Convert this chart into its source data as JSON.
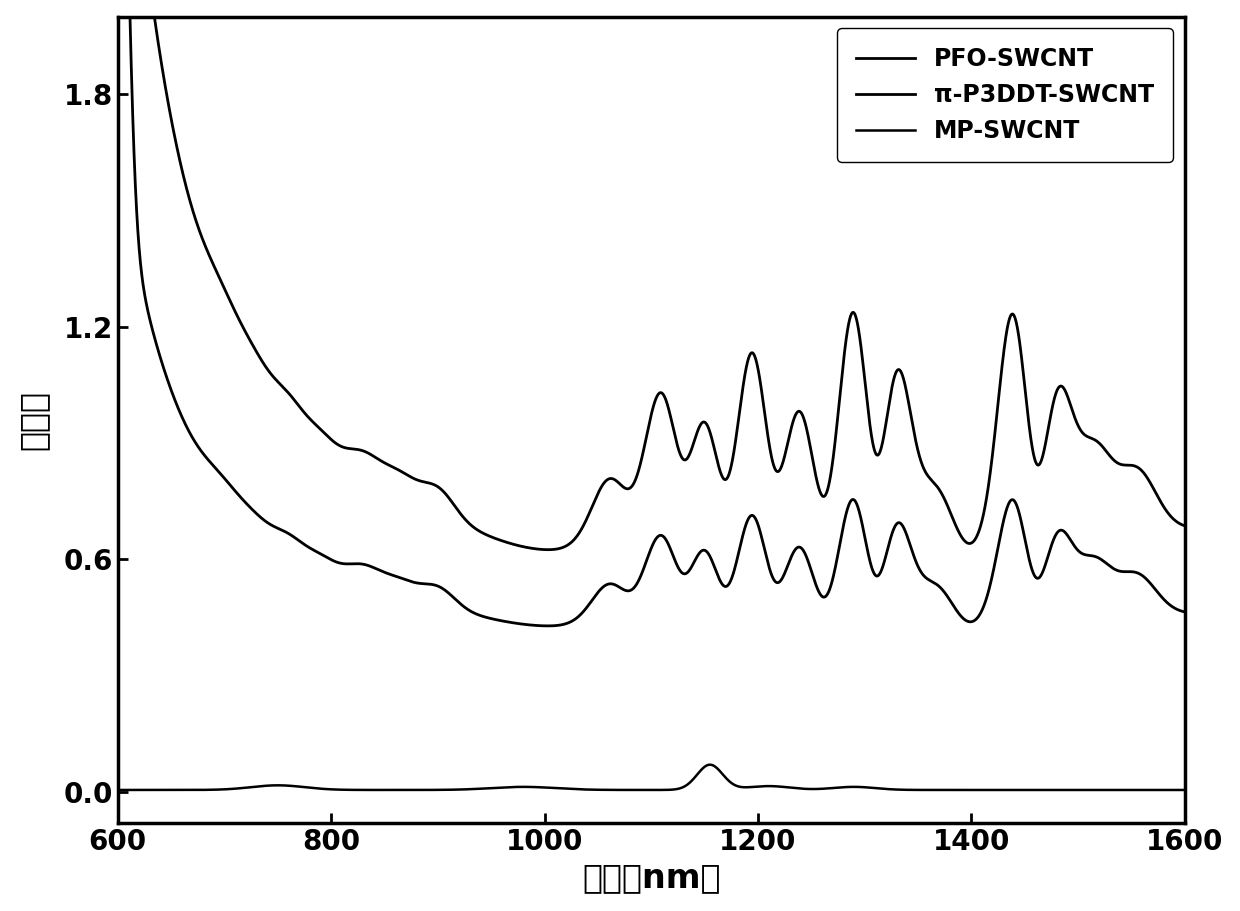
{
  "x_min": 600,
  "x_max": 1600,
  "y_min": -0.08,
  "y_max": 2.0,
  "xlabel": "波长（nm）",
  "ylabel": "吸光度",
  "xlabel_fontsize": 24,
  "ylabel_fontsize": 24,
  "tick_fontsize": 20,
  "legend_fontsize": 17,
  "line_color": "#000000",
  "line_width": 2.0,
  "legend_labels": [
    "PFO-SWCNT",
    "π-P3DDT-SWCNT",
    "MP-SWCNT"
  ],
  "background_color": "#ffffff",
  "yticks": [
    0.0,
    0.6,
    1.2,
    1.8
  ],
  "xticks": [
    600,
    800,
    1000,
    1200,
    1400,
    1600
  ]
}
